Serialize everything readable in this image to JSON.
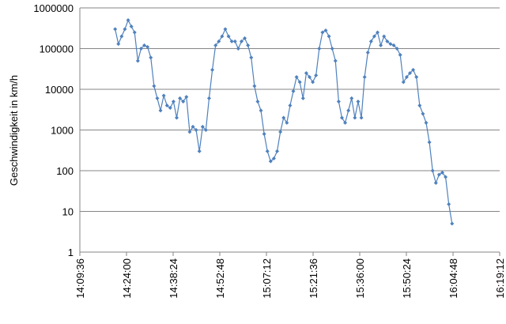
{
  "chart_data": {
    "type": "line",
    "y_label": "Geschwindigkeit in km/h",
    "color": "#4f81bd",
    "log_y": true,
    "grid": true,
    "x": [
      "14:20:30",
      "14:21:30",
      "14:22:30",
      "14:23:30",
      "14:24:30",
      "14:25:30",
      "14:26:30",
      "14:27:30",
      "14:28:30",
      "14:29:30",
      "14:30:30",
      "14:31:30",
      "14:32:30",
      "14:33:30",
      "14:34:30",
      "14:35:30",
      "14:36:30",
      "14:37:30",
      "14:38:30",
      "14:39:30",
      "14:40:30",
      "14:41:30",
      "14:42:30",
      "14:43:30",
      "14:44:30",
      "14:45:30",
      "14:46:30",
      "14:47:30",
      "14:48:30",
      "14:49:30",
      "14:50:30",
      "14:51:30",
      "14:52:30",
      "14:53:30",
      "14:54:30",
      "14:55:30",
      "14:56:30",
      "14:57:30",
      "14:58:30",
      "14:59:30",
      "15:00:30",
      "15:01:30",
      "15:02:30",
      "15:03:30",
      "15:04:30",
      "15:05:30",
      "15:06:30",
      "15:07:30",
      "15:08:30",
      "15:09:30",
      "15:10:30",
      "15:11:30",
      "15:12:30",
      "15:13:30",
      "15:14:30",
      "15:15:30",
      "15:16:30",
      "15:17:30",
      "15:18:30",
      "15:19:30",
      "15:20:30",
      "15:21:30",
      "15:22:30",
      "15:23:30",
      "15:24:30",
      "15:25:30",
      "15:26:30",
      "15:27:30",
      "15:28:30",
      "15:29:30",
      "15:30:30",
      "15:31:30",
      "15:32:30",
      "15:33:30",
      "15:34:30",
      "15:35:30",
      "15:36:30",
      "15:37:30",
      "15:38:30",
      "15:39:30",
      "15:40:30",
      "15:41:30",
      "15:42:30",
      "15:43:30",
      "15:44:30",
      "15:45:30",
      "15:46:30",
      "15:47:30",
      "15:48:30",
      "15:49:30",
      "15:50:30",
      "15:51:30",
      "15:52:30",
      "15:53:30",
      "15:54:30",
      "15:55:30",
      "15:56:30",
      "15:57:30",
      "15:58:30",
      "15:59:30",
      "16:00:30",
      "16:01:30",
      "16:02:30",
      "16:03:30",
      "16:04:30"
    ],
    "values": [
      300000,
      130000,
      200000,
      300000,
      500000,
      350000,
      250000,
      50000,
      100000,
      120000,
      110000,
      60000,
      12000,
      6000,
      3000,
      7000,
      4000,
      3500,
      5000,
      2000,
      6000,
      5000,
      6500,
      900,
      1200,
      1000,
      300,
      1200,
      1000,
      6000,
      30000,
      120000,
      150000,
      200000,
      300000,
      200000,
      150000,
      150000,
      100000,
      150000,
      180000,
      120000,
      60000,
      12000,
      5000,
      3000,
      800,
      300,
      170,
      200,
      300,
      900,
      2000,
      1500,
      4000,
      9000,
      20000,
      15000,
      6000,
      25000,
      20000,
      15000,
      22000,
      100000,
      250000,
      280000,
      200000,
      100000,
      50000,
      5000,
      2000,
      1500,
      3000,
      6000,
      2000,
      5000,
      2000,
      20000,
      80000,
      150000,
      200000,
      250000,
      120000,
      200000,
      150000,
      130000,
      120000,
      100000,
      70000,
      15000,
      20000,
      25000,
      30000,
      20000,
      4000,
      2500,
      1500,
      500,
      100,
      50,
      80,
      90,
      70,
      15,
      5
    ],
    "xlim": [
      "14:09:36",
      "16:19:12"
    ],
    "xticks": [
      "14:09:36",
      "14:24:00",
      "14:38:24",
      "14:52:48",
      "15:07:12",
      "15:21:36",
      "15:36:00",
      "15:50:24",
      "16:04:48",
      "16:19:12"
    ],
    "ylim": [
      1,
      1000000
    ],
    "yticks": [
      1,
      10,
      100,
      1000,
      10000,
      100000,
      1000000
    ]
  }
}
